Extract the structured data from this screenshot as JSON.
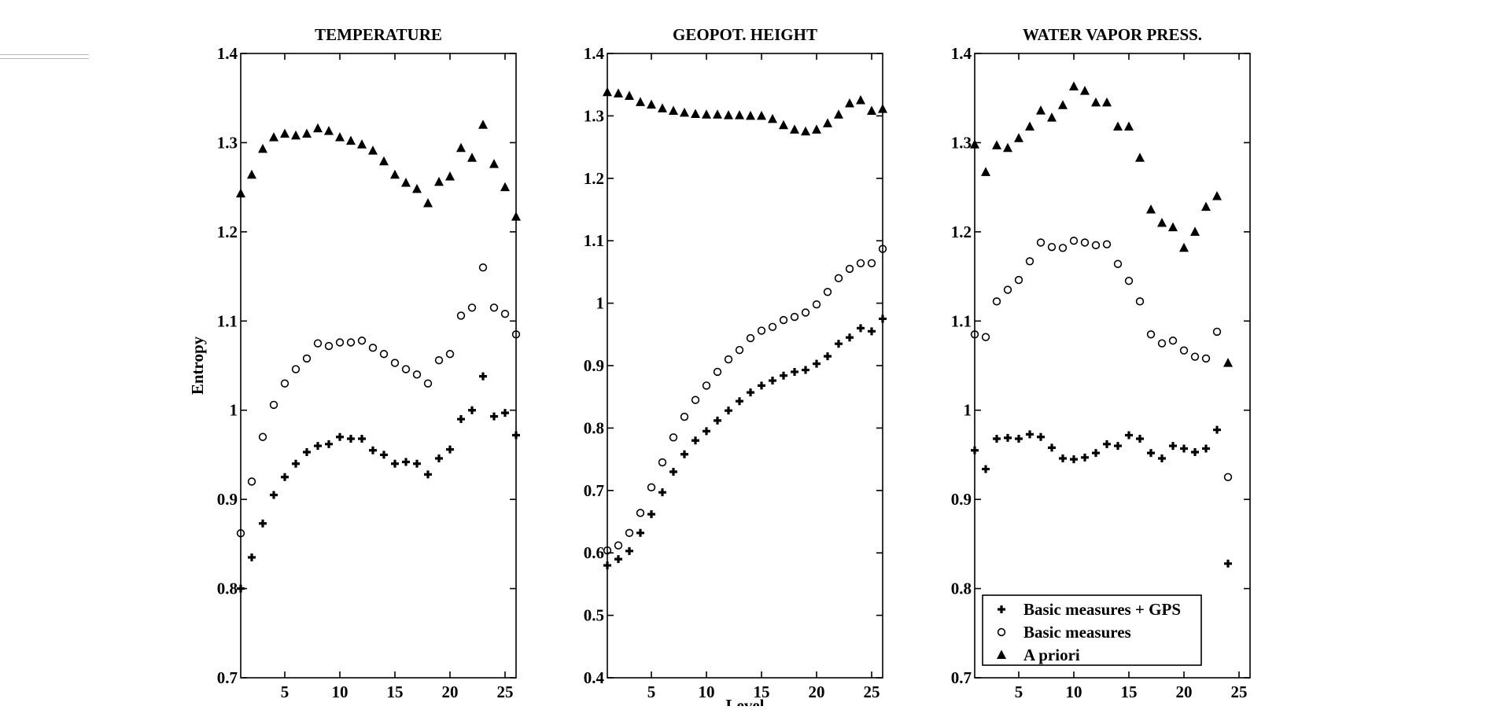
{
  "chart_data": [
    {
      "type": "scatter",
      "title": "TEMPERATURE",
      "xlabel": "",
      "ylabel": "Entropy",
      "xlim": [
        1,
        26
      ],
      "ylim": [
        0.7,
        1.4
      ],
      "xticks": [
        5,
        10,
        15,
        20,
        25
      ],
      "yticks": [
        0.7,
        0.8,
        0.9,
        1,
        1.1,
        1.2,
        1.3,
        1.4
      ],
      "ytick_labels": [
        "0.7",
        "0.8",
        "0.9",
        "1",
        "1.1",
        "1.2",
        "1.3",
        "1.4"
      ],
      "x": [
        1,
        2,
        3,
        4,
        5,
        6,
        7,
        8,
        9,
        10,
        11,
        12,
        13,
        14,
        15,
        16,
        17,
        18,
        19,
        20,
        21,
        22,
        23,
        24,
        25,
        26
      ],
      "series": [
        {
          "marker": "plus",
          "values": [
            0.8,
            0.835,
            0.873,
            0.905,
            0.925,
            0.94,
            0.953,
            0.96,
            0.962,
            0.97,
            0.968,
            0.968,
            0.955,
            0.95,
            0.94,
            0.942,
            0.94,
            0.928,
            0.946,
            0.956,
            0.99,
            1.0,
            1.038,
            0.993,
            0.997,
            0.972
          ]
        },
        {
          "marker": "circle",
          "values": [
            0.862,
            0.92,
            0.97,
            1.006,
            1.03,
            1.046,
            1.058,
            1.075,
            1.072,
            1.076,
            1.076,
            1.078,
            1.07,
            1.063,
            1.053,
            1.046,
            1.04,
            1.03,
            1.056,
            1.063,
            1.106,
            1.115,
            1.16,
            1.115,
            1.108,
            1.085
          ]
        },
        {
          "marker": "triangle",
          "values": [
            1.243,
            1.264,
            1.293,
            1.306,
            1.31,
            1.308,
            1.31,
            1.316,
            1.313,
            1.306,
            1.302,
            1.298,
            1.291,
            1.279,
            1.264,
            1.255,
            1.248,
            1.232,
            1.256,
            1.262,
            1.294,
            1.283,
            1.32,
            1.276,
            1.25,
            1.217
          ]
        }
      ]
    },
    {
      "type": "scatter",
      "title": "GEOPOT. HEIGHT",
      "xlabel": "Level",
      "ylabel": "",
      "xlim": [
        1,
        26
      ],
      "ylim": [
        0.4,
        1.4
      ],
      "xticks": [
        5,
        10,
        15,
        20,
        25
      ],
      "yticks": [
        0.4,
        0.5,
        0.6,
        0.7,
        0.8,
        0.9,
        1,
        1.1,
        1.2,
        1.3,
        1.4
      ],
      "ytick_labels": [
        "0.4",
        "0.5",
        "0.6",
        "0.7",
        "0.8",
        "0.9",
        "1",
        "1.1",
        "1.2",
        "1.3",
        "1.4"
      ],
      "x": [
        1,
        2,
        3,
        4,
        5,
        6,
        7,
        8,
        9,
        10,
        11,
        12,
        13,
        14,
        15,
        16,
        17,
        18,
        19,
        20,
        21,
        22,
        23,
        24,
        25,
        26
      ],
      "series": [
        {
          "marker": "plus",
          "values": [
            0.58,
            0.59,
            0.603,
            0.632,
            0.662,
            0.697,
            0.73,
            0.758,
            0.78,
            0.795,
            0.812,
            0.828,
            0.843,
            0.857,
            0.868,
            0.876,
            0.884,
            0.89,
            0.893,
            0.903,
            0.915,
            0.935,
            0.945,
            0.96,
            0.955,
            0.975
          ]
        },
        {
          "marker": "circle",
          "values": [
            0.604,
            0.612,
            0.632,
            0.664,
            0.705,
            0.745,
            0.785,
            0.818,
            0.845,
            0.868,
            0.89,
            0.91,
            0.925,
            0.944,
            0.956,
            0.962,
            0.973,
            0.978,
            0.985,
            0.998,
            1.018,
            1.04,
            1.055,
            1.064,
            1.064,
            1.087
          ]
        },
        {
          "marker": "triangle",
          "values": [
            1.338,
            1.336,
            1.332,
            1.322,
            1.318,
            1.312,
            1.308,
            1.305,
            1.303,
            1.302,
            1.302,
            1.301,
            1.301,
            1.3,
            1.3,
            1.295,
            1.285,
            1.278,
            1.275,
            1.278,
            1.288,
            1.302,
            1.32,
            1.325,
            1.308,
            1.311
          ]
        }
      ]
    },
    {
      "type": "scatter",
      "title": "WATER VAPOR PRESS.",
      "xlabel": "",
      "ylabel": "",
      "xlim": [
        1,
        26
      ],
      "ylim": [
        0.7,
        1.4
      ],
      "xticks": [
        5,
        10,
        15,
        20,
        25
      ],
      "xtick_labels": [
        "5",
        "10",
        "15",
        "20",
        "25"
      ],
      "yticks": [
        0.7,
        0.8,
        0.9,
        1,
        1.1,
        1.2,
        1.3,
        1.4
      ],
      "ytick_labels": [
        "0.7",
        "0.8",
        "0.9",
        "1",
        "1.1",
        "1.2",
        "1.3",
        "1.4"
      ],
      "x": [
        1,
        2,
        3,
        4,
        5,
        6,
        7,
        8,
        9,
        10,
        11,
        12,
        13,
        14,
        15,
        16,
        17,
        18,
        19,
        20,
        21,
        22,
        23,
        24
      ],
      "series": [
        {
          "marker": "plus",
          "name": "Basic measures + GPS",
          "values": [
            0.955,
            0.934,
            0.968,
            0.969,
            0.968,
            0.973,
            0.97,
            0.958,
            0.946,
            0.945,
            0.947,
            0.952,
            0.962,
            0.96,
            0.972,
            0.968,
            0.952,
            0.946,
            0.96,
            0.957,
            0.953,
            0.957,
            0.978,
            0.828
          ]
        },
        {
          "marker": "circle",
          "name": "Basic measures",
          "values": [
            1.085,
            1.082,
            1.122,
            1.135,
            1.146,
            1.167,
            1.188,
            1.183,
            1.182,
            1.19,
            1.188,
            1.185,
            1.186,
            1.164,
            1.145,
            1.122,
            1.085,
            1.075,
            1.078,
            1.067,
            1.06,
            1.058,
            1.088,
            0.925
          ]
        },
        {
          "marker": "triangle",
          "name": "A priori",
          "values": [
            1.298,
            1.267,
            1.297,
            1.294,
            1.305,
            1.318,
            1.336,
            1.328,
            1.342,
            1.363,
            1.358,
            1.345,
            1.345,
            1.318,
            1.318,
            1.283,
            1.225,
            1.21,
            1.205,
            1.182,
            1.2,
            1.228,
            1.24,
            1.053
          ]
        }
      ],
      "legend": {
        "placement": "bottom-left"
      }
    }
  ]
}
